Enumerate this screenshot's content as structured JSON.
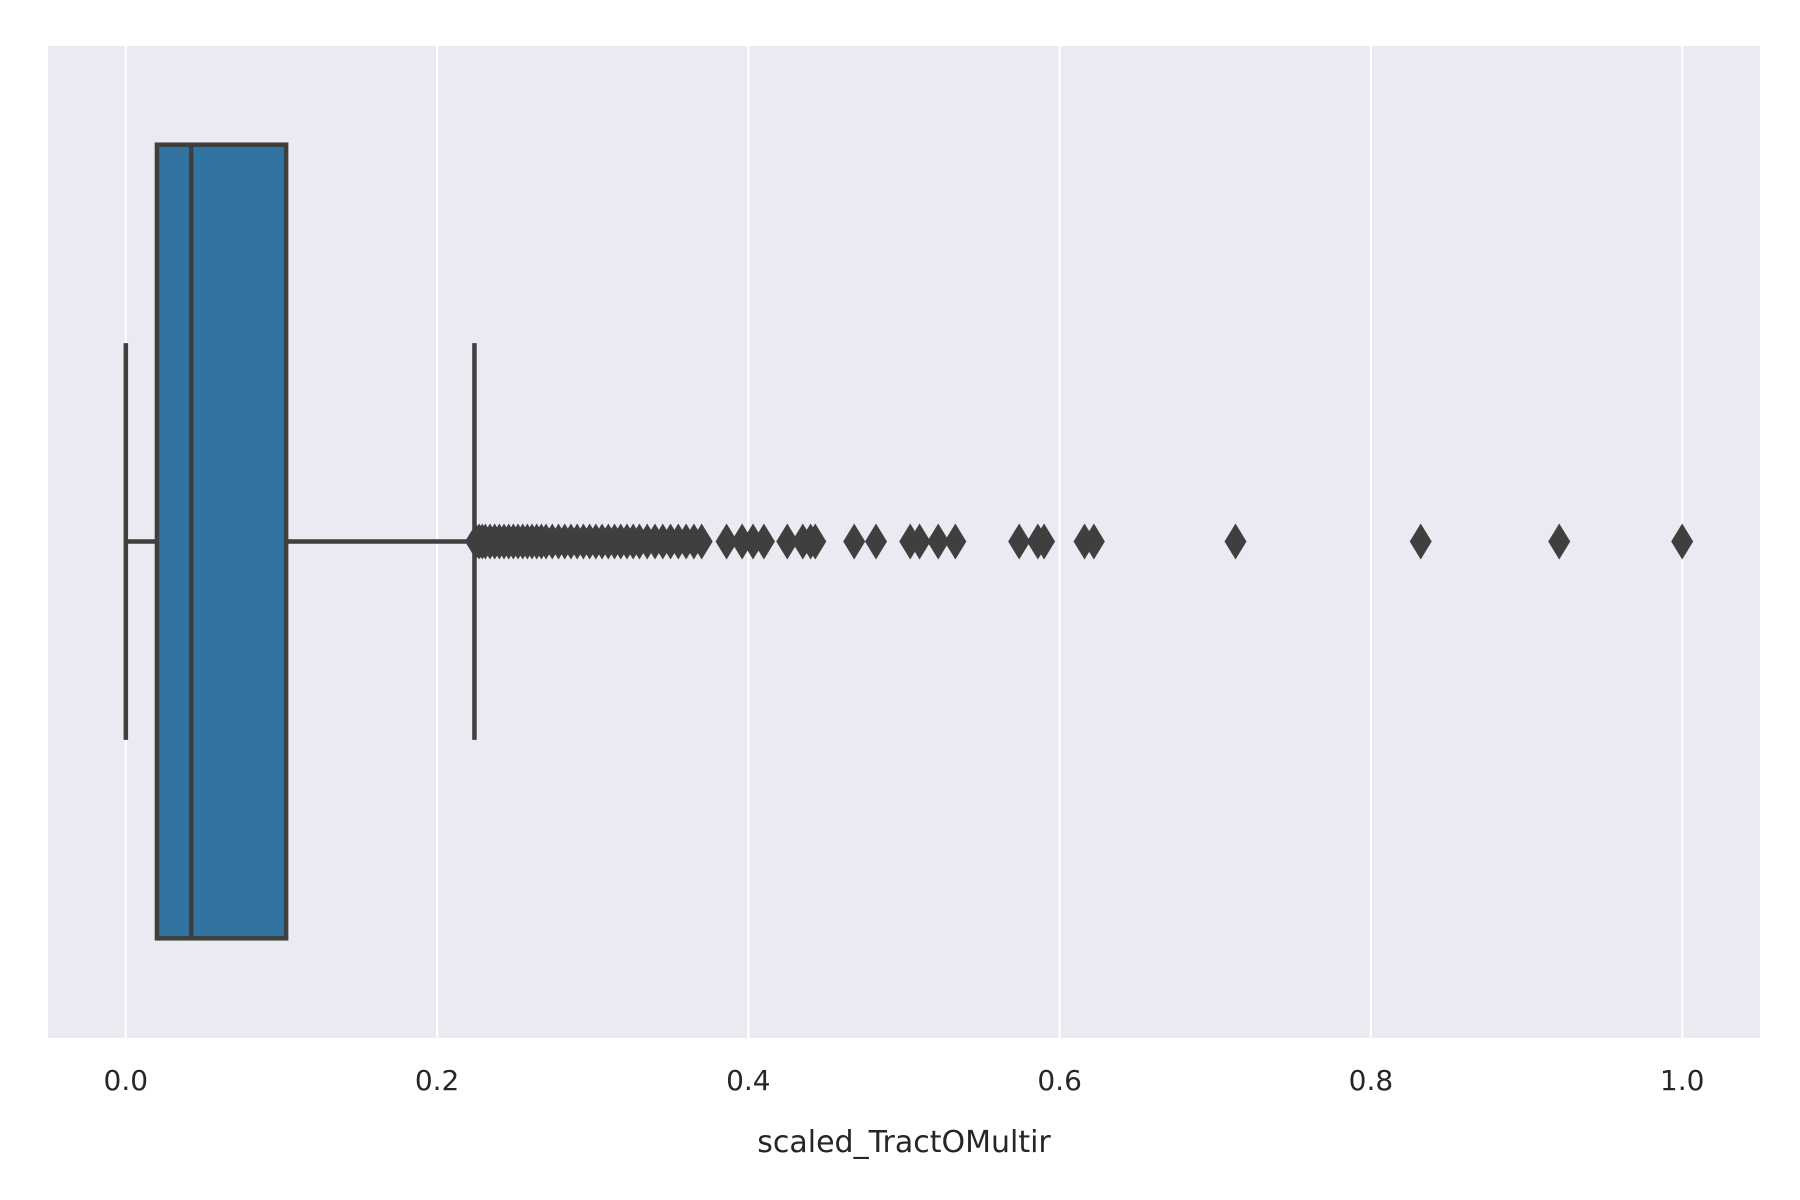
{
  "chart_data": {
    "type": "boxplot",
    "orientation": "horizontal",
    "title": "",
    "xlabel": "scaled_TractOMultir",
    "ylabel": "",
    "xlim": [
      -0.05,
      1.05
    ],
    "xticks": [
      0.0,
      0.2,
      0.4,
      0.6,
      0.8,
      1.0
    ],
    "xtick_labels": [
      "0.0",
      "0.2",
      "0.4",
      "0.6",
      "0.8",
      "1.0"
    ],
    "grid": true,
    "box": {
      "whisker_low": 0.0,
      "q1": 0.02,
      "median": 0.042,
      "q3": 0.103,
      "whisker_high": 0.224
    },
    "outliers": [
      0.225,
      0.227,
      0.229,
      0.231,
      0.234,
      0.237,
      0.24,
      0.243,
      0.246,
      0.249,
      0.252,
      0.255,
      0.258,
      0.261,
      0.264,
      0.267,
      0.27,
      0.274,
      0.278,
      0.282,
      0.286,
      0.29,
      0.294,
      0.298,
      0.302,
      0.306,
      0.31,
      0.314,
      0.318,
      0.322,
      0.326,
      0.33,
      0.335,
      0.34,
      0.345,
      0.35,
      0.355,
      0.36,
      0.365,
      0.37,
      0.386,
      0.396,
      0.403,
      0.41,
      0.425,
      0.435,
      0.44,
      0.443,
      0.468,
      0.482,
      0.504,
      0.51,
      0.522,
      0.533,
      0.574,
      0.586,
      0.59,
      0.616,
      0.622,
      0.713,
      0.832,
      0.921,
      1.0
    ],
    "colors": {
      "plot_background": "#eaeaf2",
      "gridline": "#ffffff",
      "box_fill": "#3274a1",
      "line": "#3f3f3f",
      "outlier": "#3f3f3f",
      "text": "#262626"
    }
  }
}
